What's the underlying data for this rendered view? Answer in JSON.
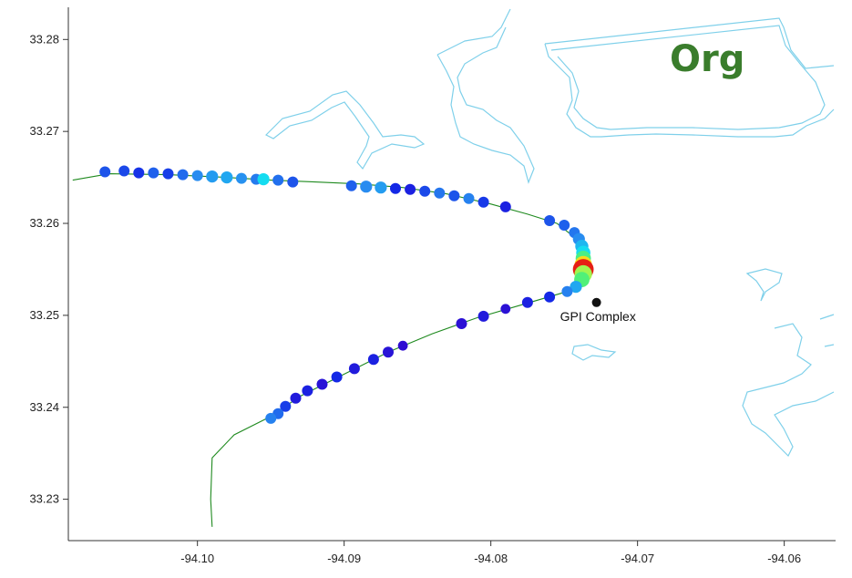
{
  "panel_label": "Org",
  "colors": {
    "panel_label": "#3a7d2c",
    "shoreline": "#7fd0ea",
    "track": "#1f8a1f",
    "site": "#111111"
  },
  "site": {
    "name": "GPI Complex",
    "lon": -94.0728,
    "lat": 33.2514
  },
  "chart_data": {
    "type": "scatter",
    "xlim": [
      -94.1088,
      -94.0565
    ],
    "ylim": [
      33.2255,
      33.2835
    ],
    "x_ticks": [
      -94.1,
      -94.09,
      -94.08,
      -94.07,
      -94.06
    ],
    "x_tick_labels": [
      "-94.10",
      "-94.09",
      "-94.08",
      "-94.07",
      "-94.06"
    ],
    "y_ticks": [
      33.23,
      33.24,
      33.25,
      33.26,
      33.27,
      33.28
    ],
    "y_tick_labels": [
      "33.23",
      "33.24",
      "33.25",
      "33.26",
      "33.27",
      "33.28"
    ],
    "grid": false,
    "track_path": [
      [
        -94.1085,
        33.2647
      ],
      [
        -94.106,
        33.2654
      ],
      [
        -94.102,
        33.2653
      ],
      [
        -94.098,
        33.265
      ],
      [
        -94.095,
        33.2647
      ],
      [
        -94.092,
        33.2645
      ],
      [
        -94.089,
        33.2643
      ],
      [
        -94.086,
        33.2639
      ],
      [
        -94.083,
        33.2632
      ],
      [
        -94.08,
        33.2621
      ],
      [
        -94.0775,
        33.261
      ],
      [
        -94.0755,
        33.26
      ],
      [
        -94.0743,
        33.2585
      ],
      [
        -94.0738,
        33.2568
      ],
      [
        -94.0737,
        33.255
      ],
      [
        -94.074,
        33.2538
      ],
      [
        -94.075,
        33.2525
      ],
      [
        -94.078,
        33.2511
      ],
      [
        -94.081,
        33.2497
      ],
      [
        -94.084,
        33.248
      ],
      [
        -94.087,
        33.246
      ],
      [
        -94.09,
        33.2436
      ],
      [
        -94.093,
        33.2412
      ],
      [
        -94.095,
        33.239
      ],
      [
        -94.0975,
        33.237
      ],
      [
        -94.099,
        33.2345
      ],
      [
        -94.0991,
        33.23
      ],
      [
        -94.099,
        33.227
      ]
    ],
    "points": [
      {
        "lon": -94.1063,
        "lat": 33.2656,
        "c": 0.2,
        "s": 1
      },
      {
        "lon": -94.105,
        "lat": 33.2657,
        "c": 0.18,
        "s": 1
      },
      {
        "lon": -94.104,
        "lat": 33.2655,
        "c": 0.14,
        "s": 1
      },
      {
        "lon": -94.103,
        "lat": 33.2655,
        "c": 0.22,
        "s": 1
      },
      {
        "lon": -94.102,
        "lat": 33.2654,
        "c": 0.16,
        "s": 1
      },
      {
        "lon": -94.101,
        "lat": 33.2653,
        "c": 0.24,
        "s": 1
      },
      {
        "lon": -94.1,
        "lat": 33.2652,
        "c": 0.3,
        "s": 1
      },
      {
        "lon": -94.099,
        "lat": 33.2651,
        "c": 0.33,
        "s": 1.1
      },
      {
        "lon": -94.098,
        "lat": 33.265,
        "c": 0.35,
        "s": 1.1
      },
      {
        "lon": -94.097,
        "lat": 33.2649,
        "c": 0.31,
        "s": 1
      },
      {
        "lon": -94.096,
        "lat": 33.2648,
        "c": 0.27,
        "s": 1
      },
      {
        "lon": -94.0955,
        "lat": 33.2648,
        "c": 0.45,
        "s": 1.1
      },
      {
        "lon": -94.0945,
        "lat": 33.2647,
        "c": 0.25,
        "s": 1
      },
      {
        "lon": -94.0935,
        "lat": 33.2645,
        "c": 0.2,
        "s": 1
      },
      {
        "lon": -94.0895,
        "lat": 33.2641,
        "c": 0.22,
        "s": 1
      },
      {
        "lon": -94.0885,
        "lat": 33.264,
        "c": 0.3,
        "s": 1.1
      },
      {
        "lon": -94.0875,
        "lat": 33.2639,
        "c": 0.33,
        "s": 1.1
      },
      {
        "lon": -94.0865,
        "lat": 33.2638,
        "c": 0.12,
        "s": 1
      },
      {
        "lon": -94.0855,
        "lat": 33.2637,
        "c": 0.1,
        "s": 1
      },
      {
        "lon": -94.0845,
        "lat": 33.2635,
        "c": 0.18,
        "s": 1
      },
      {
        "lon": -94.0835,
        "lat": 33.2633,
        "c": 0.26,
        "s": 1
      },
      {
        "lon": -94.0825,
        "lat": 33.263,
        "c": 0.2,
        "s": 1
      },
      {
        "lon": -94.0815,
        "lat": 33.2627,
        "c": 0.28,
        "s": 1
      },
      {
        "lon": -94.0805,
        "lat": 33.2623,
        "c": 0.15,
        "s": 1
      },
      {
        "lon": -94.079,
        "lat": 33.2618,
        "c": 0.1,
        "s": 1
      },
      {
        "lon": -94.076,
        "lat": 33.2603,
        "c": 0.2,
        "s": 1
      },
      {
        "lon": -94.075,
        "lat": 33.2598,
        "c": 0.22,
        "s": 1
      },
      {
        "lon": -94.0743,
        "lat": 33.259,
        "c": 0.26,
        "s": 1
      },
      {
        "lon": -94.074,
        "lat": 33.2583,
        "c": 0.3,
        "s": 1.1
      },
      {
        "lon": -94.0738,
        "lat": 33.2575,
        "c": 0.38,
        "s": 1.2
      },
      {
        "lon": -94.0737,
        "lat": 33.2568,
        "c": 0.45,
        "s": 1.3
      },
      {
        "lon": -94.0737,
        "lat": 33.2562,
        "c": 0.6,
        "s": 1.4
      },
      {
        "lon": -94.0737,
        "lat": 33.2555,
        "c": 0.82,
        "s": 1.6
      },
      {
        "lon": -94.0737,
        "lat": 33.255,
        "c": 1.0,
        "s": 1.9
      },
      {
        "lon": -94.0737,
        "lat": 33.2545,
        "c": 0.7,
        "s": 1.6
      },
      {
        "lon": -94.0738,
        "lat": 33.2539,
        "c": 0.62,
        "s": 1.4
      },
      {
        "lon": -94.0742,
        "lat": 33.2531,
        "c": 0.35,
        "s": 1.1
      },
      {
        "lon": -94.0748,
        "lat": 33.2526,
        "c": 0.28,
        "s": 1
      },
      {
        "lon": -94.076,
        "lat": 33.252,
        "c": 0.12,
        "s": 1
      },
      {
        "lon": -94.0775,
        "lat": 33.2514,
        "c": 0.1,
        "s": 1
      },
      {
        "lon": -94.079,
        "lat": 33.2507,
        "c": 0.05,
        "s": 0.9
      },
      {
        "lon": -94.0805,
        "lat": 33.2499,
        "c": 0.08,
        "s": 1
      },
      {
        "lon": -94.082,
        "lat": 33.2491,
        "c": 0.05,
        "s": 1
      },
      {
        "lon": -94.086,
        "lat": 33.2467,
        "c": 0.04,
        "s": 0.9
      },
      {
        "lon": -94.087,
        "lat": 33.246,
        "c": 0.06,
        "s": 1
      },
      {
        "lon": -94.088,
        "lat": 33.2452,
        "c": 0.1,
        "s": 1
      },
      {
        "lon": -94.0893,
        "lat": 33.2442,
        "c": 0.08,
        "s": 1
      },
      {
        "lon": -94.0905,
        "lat": 33.2433,
        "c": 0.12,
        "s": 1
      },
      {
        "lon": -94.0915,
        "lat": 33.2425,
        "c": 0.06,
        "s": 1
      },
      {
        "lon": -94.0925,
        "lat": 33.2418,
        "c": 0.1,
        "s": 1
      },
      {
        "lon": -94.0933,
        "lat": 33.241,
        "c": 0.08,
        "s": 1
      },
      {
        "lon": -94.094,
        "lat": 33.2401,
        "c": 0.16,
        "s": 1
      },
      {
        "lon": -94.0945,
        "lat": 33.2393,
        "c": 0.24,
        "s": 1
      },
      {
        "lon": -94.095,
        "lat": 33.2388,
        "c": 0.28,
        "s": 1
      }
    ]
  }
}
